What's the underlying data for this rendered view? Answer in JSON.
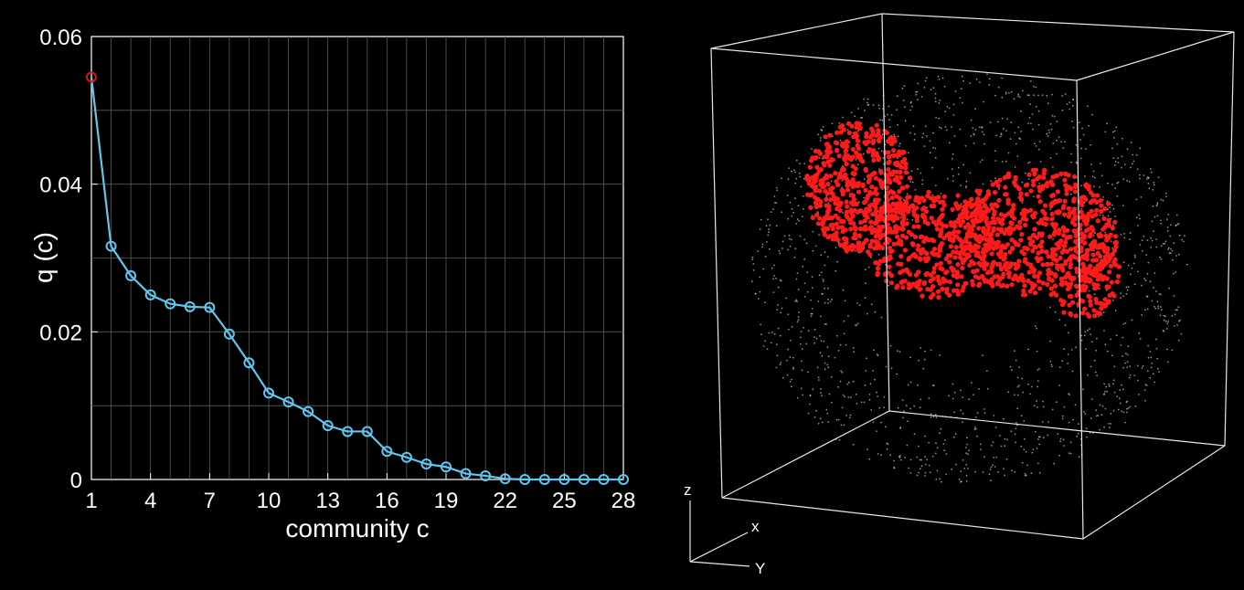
{
  "chart_data": [
    {
      "type": "line",
      "xlabel": "community c",
      "ylabel": "q (c)",
      "xlim": [
        1,
        28
      ],
      "ylim": [
        0,
        0.06
      ],
      "xticks": [
        1,
        4,
        7,
        10,
        13,
        16,
        19,
        22,
        25,
        28
      ],
      "xtick_labels": [
        "1",
        "4",
        "7",
        "10",
        "13",
        "16",
        "19",
        "22",
        "25",
        "28"
      ],
      "yticks": [
        0,
        0.02,
        0.04,
        0.06
      ],
      "ytick_labels": [
        "0",
        "0.02",
        "0.04",
        "0.06"
      ],
      "grid": true,
      "x": [
        1,
        2,
        3,
        4,
        5,
        6,
        7,
        8,
        9,
        10,
        11,
        12,
        13,
        14,
        15,
        16,
        17,
        18,
        19,
        20,
        21,
        22,
        23,
        24,
        25,
        26,
        27,
        28
      ],
      "values": [
        0.0545,
        0.0316,
        0.0276,
        0.025,
        0.0238,
        0.0234,
        0.0233,
        0.0197,
        0.0158,
        0.0117,
        0.0105,
        0.0092,
        0.0073,
        0.0065,
        0.0065,
        0.0038,
        0.003,
        0.0021,
        0.0017,
        0.0008,
        0.0005,
        0.0001,
        0,
        0,
        0,
        0,
        0,
        0
      ],
      "highlight_index": 0,
      "colors": {
        "line": "#5ec8f0",
        "highlight": "#e01010",
        "background": "#000000",
        "axes": "#ffffff"
      }
    },
    {
      "type": "scatter",
      "axis_labels": {
        "x": "x",
        "y": "Y",
        "z": "z"
      },
      "series": [
        {
          "color": "#ff1a1a"
        },
        {
          "color": "#ffffff"
        }
      ]
    }
  ]
}
